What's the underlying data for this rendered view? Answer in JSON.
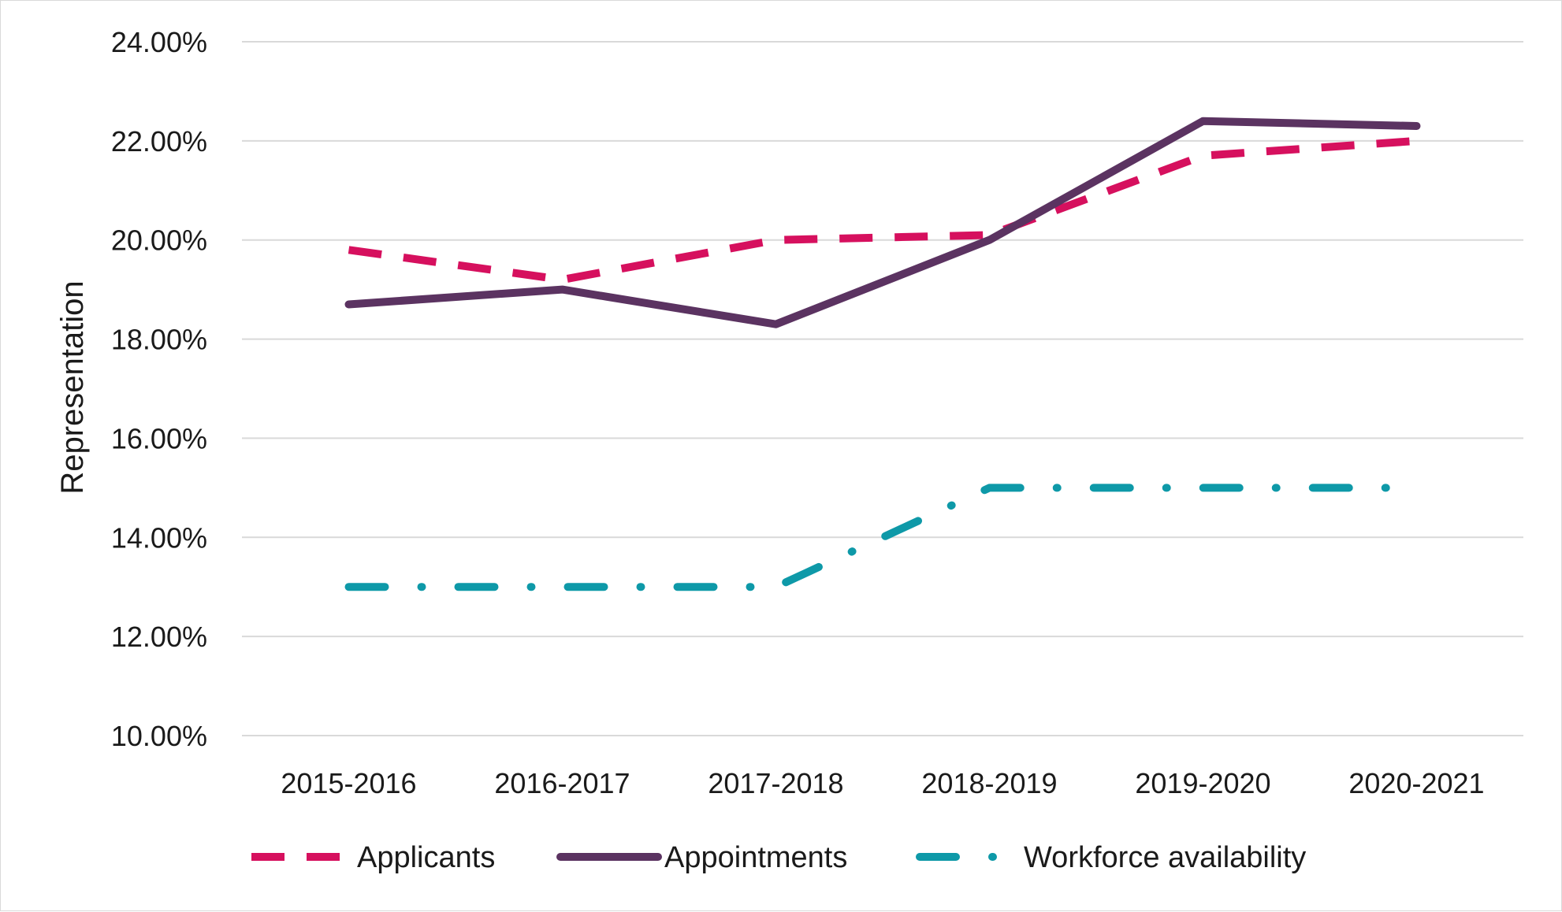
{
  "chart_data": {
    "type": "line",
    "title": "",
    "xlabel": "",
    "ylabel": "Representation",
    "ylim": [
      0.1,
      0.24
    ],
    "y_ticks": [
      0.1,
      0.12,
      0.14,
      0.16,
      0.18,
      0.2,
      0.22,
      0.24
    ],
    "y_tick_labels": [
      "10.00%",
      "12.00%",
      "14.00%",
      "16.00%",
      "18.00%",
      "20.00%",
      "22.00%",
      "24.00%"
    ],
    "categories": [
      "2015-2016",
      "2016-2017",
      "2017-2018",
      "2018-2019",
      "2019-2020",
      "2020-2021"
    ],
    "grid": "horizontal",
    "legend_position": "bottom",
    "series": [
      {
        "name": "Applicants",
        "values": [
          0.198,
          0.192,
          0.2,
          0.201,
          0.217,
          0.22
        ],
        "color": "#d6105e",
        "line_style": "dashed"
      },
      {
        "name": "Appointments",
        "values": [
          0.187,
          0.19,
          0.183,
          0.2,
          0.224,
          0.223
        ],
        "color": "#5b3361",
        "line_style": "solid"
      },
      {
        "name": "Workforce availability",
        "values": [
          0.13,
          0.13,
          0.13,
          0.15,
          0.15,
          0.15
        ],
        "color": "#0e99a8",
        "line_style": "dash-dot"
      }
    ]
  }
}
